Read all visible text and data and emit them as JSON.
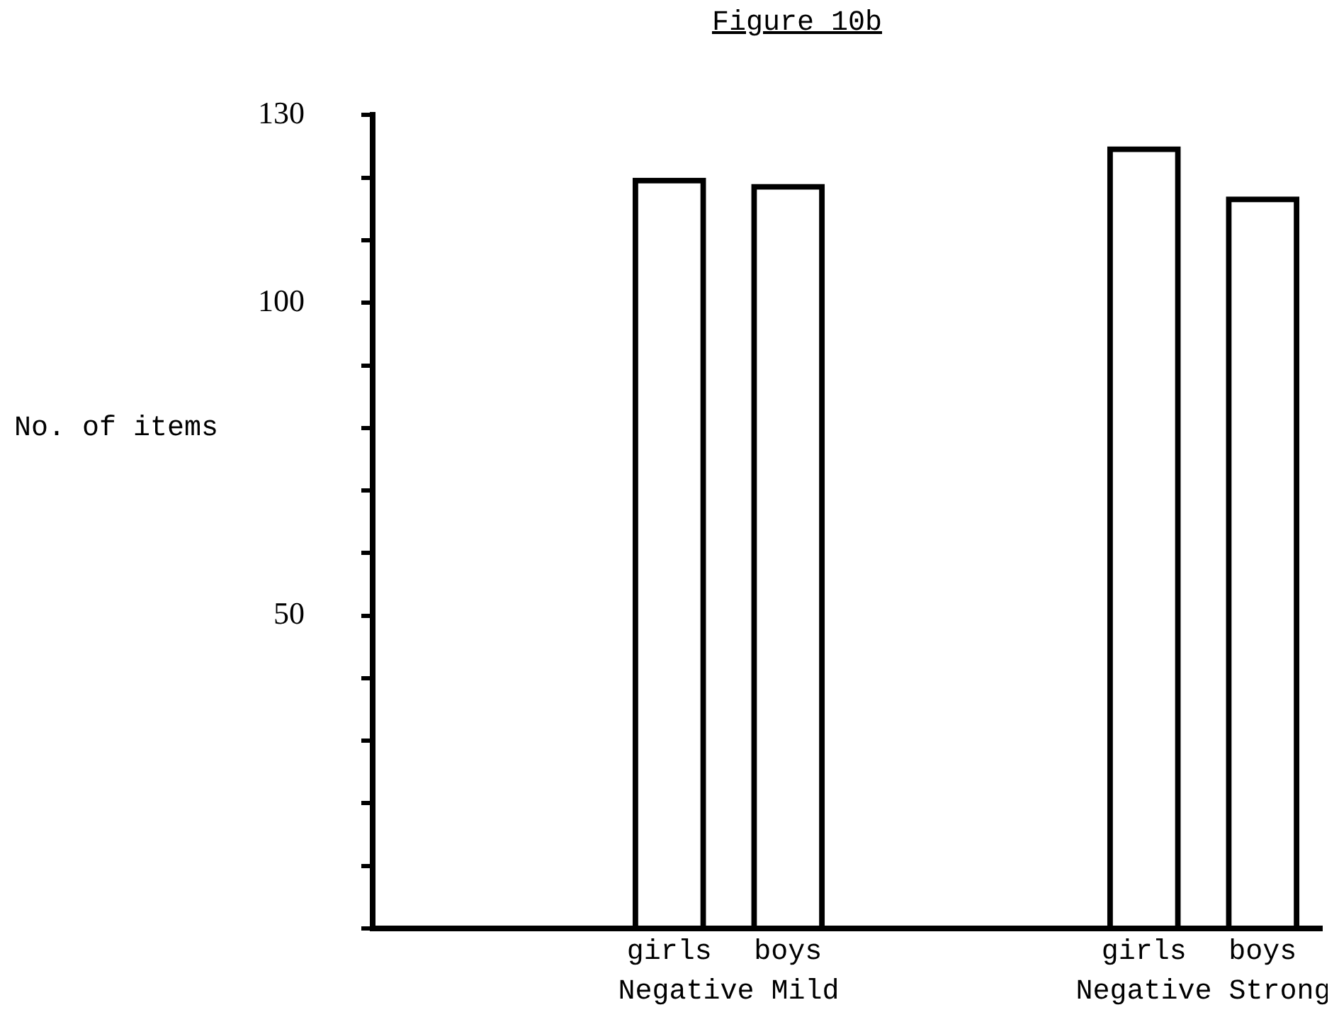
{
  "chart_data": {
    "type": "bar",
    "title": "Figure 10b",
    "ylabel": "No. of items",
    "categories": [
      null,
      null,
      "girls",
      "boys",
      null,
      null,
      "girls",
      "boys"
    ],
    "values": [
      null,
      null,
      120,
      119,
      null,
      null,
      125,
      117
    ],
    "color": "#000000",
    "annotations": [
      "Negative Mild",
      "Negative Strong"
    ],
    "ylim": [
      0,
      130
    ],
    "yticks": [
      {
        "value": 0,
        "label": null
      },
      {
        "value": 10,
        "label": null
      },
      {
        "value": 20,
        "label": null
      },
      {
        "value": 30,
        "label": null
      },
      {
        "value": 40,
        "label": null
      },
      50,
      {
        "value": 60,
        "label": null
      },
      {
        "value": 70,
        "label": null
      },
      {
        "value": 80,
        "label": null
      },
      {
        "value": 90,
        "label": null
      },
      100,
      {
        "value": 110,
        "label": null
      },
      {
        "value": 120,
        "label": null
      },
      130
    ],
    "grid": false,
    "legend": false
  }
}
